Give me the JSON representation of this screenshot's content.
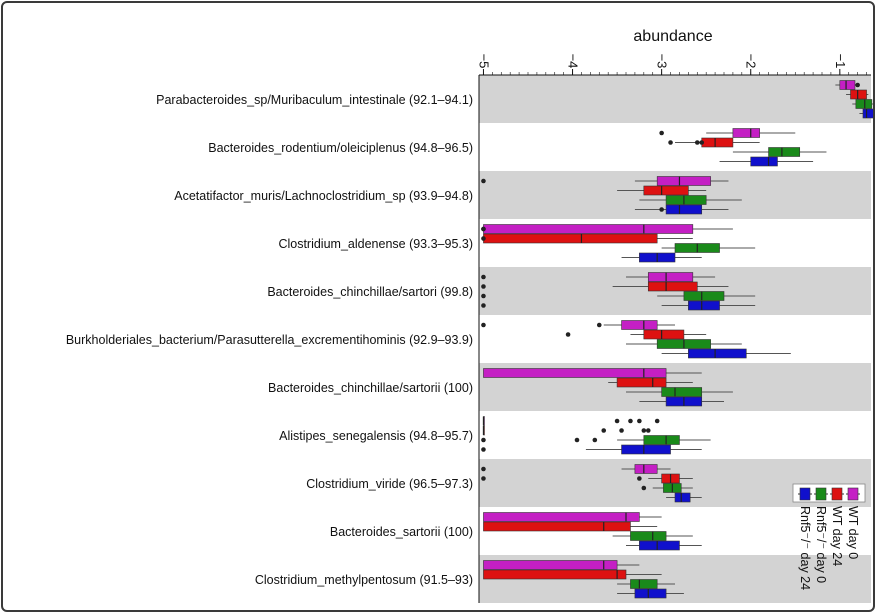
{
  "chart_data": {
    "type": "box",
    "title": "abundance",
    "axis": {
      "label": "abundance",
      "ticks": [
        -5,
        -4,
        -3,
        -2,
        -1
      ],
      "tick_labels": [
        "−5",
        "−4",
        "−3",
        "−2",
        "−1"
      ],
      "range": [
        -5.05,
        -0.65
      ]
    },
    "legend": {
      "placement": "bottom-right",
      "items": [
        {
          "name": "WT day 0",
          "color": "#c41fc4"
        },
        {
          "name": "WT day 24",
          "color": "#dd1111"
        },
        {
          "name": "Rnf5⁻/⁻ day 0",
          "color": "#1a8a1a"
        },
        {
          "name": "Rnf5⁻/⁻ day 24",
          "color": "#1010cc"
        }
      ]
    },
    "categories": [
      {
        "label": "Parabacteroides_sp/Muribaculum_intestinale (92.1–94.1)",
        "shaded": true,
        "boxes": [
          {
            "q1": -1.0,
            "median": -0.93,
            "q3": -0.83,
            "wlo": -1.05,
            "whi": -0.78,
            "out": [
              -0.8
            ]
          },
          {
            "q1": -0.88,
            "median": -0.8,
            "q3": -0.7,
            "wlo": -0.93,
            "whi": -0.68,
            "out": []
          },
          {
            "q1": -0.82,
            "median": -0.72,
            "q3": -0.64,
            "wlo": -0.86,
            "whi": -0.6,
            "out": []
          },
          {
            "q1": -0.74,
            "median": -0.7,
            "q3": -0.62,
            "wlo": -0.78,
            "whi": -0.6,
            "out": []
          }
        ]
      },
      {
        "label": "Bacteroides_rodentium/oleiciplenus (94.8–96.5)",
        "shaded": false,
        "boxes": [
          {
            "q1": -2.2,
            "median": -2.0,
            "q3": -1.9,
            "wlo": -2.5,
            "whi": -1.5,
            "out": [
              -3.0
            ]
          },
          {
            "q1": -2.55,
            "median": -2.4,
            "q3": -2.2,
            "wlo": -2.85,
            "whi": -1.9,
            "out": [
              -2.9,
              -2.6,
              -2.55
            ]
          },
          {
            "q1": -1.8,
            "median": -1.65,
            "q3": -1.45,
            "wlo": -2.2,
            "whi": -1.15,
            "out": []
          },
          {
            "q1": -2.0,
            "median": -1.8,
            "q3": -1.7,
            "wlo": -2.35,
            "whi": -1.3,
            "out": []
          }
        ]
      },
      {
        "label": "Acetatifactor_muris/Lachnoclostridium_sp (93.9–94.8)",
        "shaded": true,
        "boxes": [
          {
            "q1": -3.05,
            "median": -2.8,
            "q3": -2.45,
            "wlo": -3.3,
            "whi": -2.25,
            "out": [
              -5.0
            ]
          },
          {
            "q1": -3.2,
            "median": -3.0,
            "q3": -2.7,
            "wlo": -3.5,
            "whi": -2.5,
            "out": []
          },
          {
            "q1": -2.95,
            "median": -2.75,
            "q3": -2.5,
            "wlo": -3.25,
            "whi": -2.1,
            "out": []
          },
          {
            "q1": -2.95,
            "median": -2.8,
            "q3": -2.55,
            "wlo": -3.3,
            "whi": -2.25,
            "out": [
              -3.0
            ]
          }
        ]
      },
      {
        "label": "Clostridium_aldenense (93.3–95.3)",
        "shaded": false,
        "boxes": [
          {
            "q1": -5.0,
            "median": -3.2,
            "q3": -2.65,
            "wlo": -5.0,
            "whi": -2.2,
            "out": [
              -5.0,
              -5.0
            ]
          },
          {
            "q1": -5.0,
            "median": -3.9,
            "q3": -3.05,
            "wlo": -5.0,
            "whi": -2.65,
            "out": [
              -5.0
            ]
          },
          {
            "q1": -2.85,
            "median": -2.6,
            "q3": -2.35,
            "wlo": -3.0,
            "whi": -1.95,
            "out": []
          },
          {
            "q1": -3.25,
            "median": -3.05,
            "q3": -2.85,
            "wlo": -3.45,
            "whi": -2.55,
            "out": []
          }
        ]
      },
      {
        "label": "Bacteroides_chinchillae/sartori (99.8)",
        "shaded": true,
        "boxes": [
          {
            "q1": -3.15,
            "median": -2.95,
            "q3": -2.65,
            "wlo": -3.4,
            "whi": -2.4,
            "out": [
              -5.0
            ]
          },
          {
            "q1": -3.15,
            "median": -2.95,
            "q3": -2.6,
            "wlo": -3.55,
            "whi": -2.25,
            "out": [
              -5.0
            ]
          },
          {
            "q1": -2.75,
            "median": -2.55,
            "q3": -2.3,
            "wlo": -3.05,
            "whi": -1.95,
            "out": [
              -5.0
            ]
          },
          {
            "q1": -2.7,
            "median": -2.55,
            "q3": -2.35,
            "wlo": -3.0,
            "whi": -1.95,
            "out": [
              -5.0
            ]
          }
        ]
      },
      {
        "label": "Burkholderiales_bacterium/Parasutterella_excrementihominis (92.9–93.9)",
        "shaded": false,
        "boxes": [
          {
            "q1": -3.45,
            "median": -3.2,
            "q3": -3.05,
            "wlo": -3.65,
            "whi": -2.85,
            "out": [
              -5.0,
              -3.7
            ]
          },
          {
            "q1": -3.2,
            "median": -3.0,
            "q3": -2.75,
            "wlo": -3.35,
            "whi": -2.5,
            "out": [
              -4.05
            ]
          },
          {
            "q1": -3.05,
            "median": -2.75,
            "q3": -2.45,
            "wlo": -3.4,
            "whi": -2.1,
            "out": []
          },
          {
            "q1": -2.7,
            "median": -2.4,
            "q3": -2.05,
            "wlo": -3.0,
            "whi": -1.55,
            "out": []
          }
        ]
      },
      {
        "label": "Bacteroides_chinchillae/sartorii (100)",
        "shaded": true,
        "boxes": [
          {
            "q1": -5.0,
            "median": -3.2,
            "q3": -2.95,
            "wlo": -5.0,
            "whi": -2.55,
            "out": []
          },
          {
            "q1": -3.5,
            "median": -3.1,
            "q3": -2.95,
            "wlo": -3.6,
            "whi": -2.65,
            "out": []
          },
          {
            "q1": -3.0,
            "median": -2.85,
            "q3": -2.55,
            "wlo": -3.4,
            "whi": -2.2,
            "out": []
          },
          {
            "q1": -2.95,
            "median": -2.75,
            "q3": -2.55,
            "wlo": -3.25,
            "whi": -2.3,
            "out": []
          }
        ]
      },
      {
        "label": "Alistipes_senegalensis (94.8–95.7)",
        "shaded": false,
        "boxes": [
          {
            "q1": -5.0,
            "median": -5.0,
            "q3": -5.0,
            "wlo": -5.0,
            "whi": -5.0,
            "out": [
              -3.5,
              -3.35,
              -3.25,
              -3.05
            ]
          },
          {
            "q1": -5.0,
            "median": -5.0,
            "q3": -5.0,
            "wlo": -5.0,
            "whi": -5.0,
            "out": [
              -3.65,
              -3.45,
              -3.2,
              -3.15
            ]
          },
          {
            "q1": -3.2,
            "median": -2.95,
            "q3": -2.8,
            "wlo": -3.5,
            "whi": -2.45,
            "out": [
              -3.75,
              -3.95,
              -5.0
            ]
          },
          {
            "q1": -3.45,
            "median": -3.2,
            "q3": -2.9,
            "wlo": -3.85,
            "whi": -2.55,
            "out": [
              -5.0
            ]
          }
        ]
      },
      {
        "label": "Clostridium_viride (96.5–97.3)",
        "shaded": true,
        "boxes": [
          {
            "q1": -3.3,
            "median": -3.2,
            "q3": -3.05,
            "wlo": -3.45,
            "whi": -2.9,
            "out": [
              -5.0
            ]
          },
          {
            "q1": -3.0,
            "median": -2.9,
            "q3": -2.8,
            "wlo": -3.15,
            "whi": -2.65,
            "out": [
              -3.25,
              -5.0
            ]
          },
          {
            "q1": -2.98,
            "median": -2.88,
            "q3": -2.78,
            "wlo": -3.1,
            "whi": -2.65,
            "out": [
              -3.2
            ]
          },
          {
            "q1": -2.85,
            "median": -2.78,
            "q3": -2.68,
            "wlo": -2.95,
            "whi": -2.55,
            "out": []
          }
        ]
      },
      {
        "label": "Bacteroides_sartorii (100)",
        "shaded": false,
        "boxes": [
          {
            "q1": -5.0,
            "median": -3.4,
            "q3": -3.25,
            "wlo": -5.0,
            "whi": -3.0,
            "out": []
          },
          {
            "q1": -5.0,
            "median": -3.65,
            "q3": -3.35,
            "wlo": -5.0,
            "whi": -3.05,
            "out": []
          },
          {
            "q1": -3.35,
            "median": -3.1,
            "q3": -2.95,
            "wlo": -3.55,
            "whi": -2.65,
            "out": []
          },
          {
            "q1": -3.25,
            "median": -3.05,
            "q3": -2.8,
            "wlo": -3.4,
            "whi": -2.55,
            "out": []
          }
        ]
      },
      {
        "label": "Clostridium_methylpentosum (91.5–93)",
        "shaded": true,
        "boxes": [
          {
            "q1": -5.0,
            "median": -3.65,
            "q3": -3.5,
            "wlo": -5.0,
            "whi": -3.25,
            "out": []
          },
          {
            "q1": -5.0,
            "median": -3.5,
            "q3": -3.4,
            "wlo": -5.0,
            "whi": -3.0,
            "out": []
          },
          {
            "q1": -3.35,
            "median": -3.25,
            "q3": -3.05,
            "wlo": -3.5,
            "whi": -2.85,
            "out": []
          },
          {
            "q1": -3.3,
            "median": -3.15,
            "q3": -2.95,
            "wlo": -3.5,
            "whi": -2.75,
            "out": []
          }
        ]
      }
    ]
  }
}
